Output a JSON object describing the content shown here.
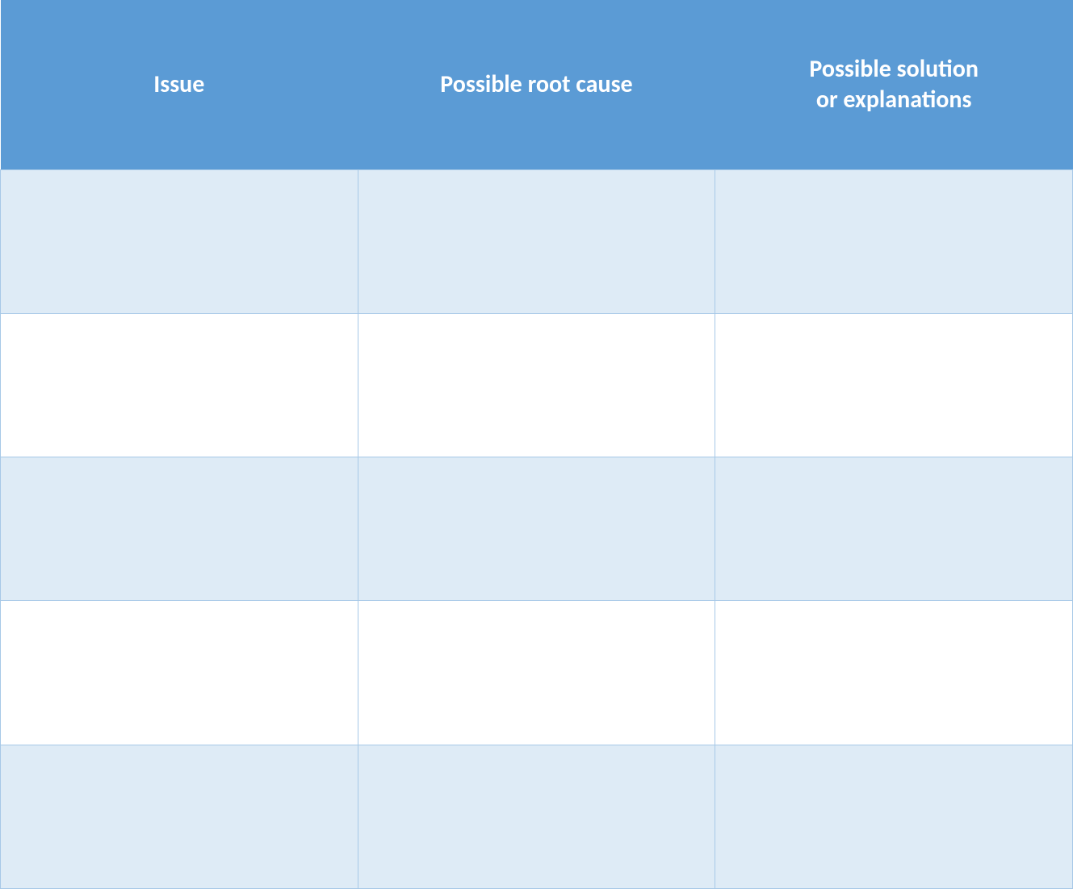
{
  "table": {
    "type": "table",
    "columns": [
      {
        "label": "Issue",
        "multiline": false
      },
      {
        "label": "Possible root cause",
        "multiline": false
      },
      {
        "label": "Possible solution\nor explanations",
        "multiline": true
      }
    ],
    "rows": [
      [
        "",
        "",
        ""
      ],
      [
        "",
        "",
        ""
      ],
      [
        "",
        "",
        ""
      ],
      [
        "",
        "",
        ""
      ],
      [
        "",
        "",
        ""
      ]
    ],
    "styling": {
      "header_bg": "#5b9bd5",
      "header_text_color": "#ffffff",
      "header_fontsize": 30,
      "header_fontweight": "bold",
      "row_odd_bg": "#deebf6",
      "row_even_bg": "#ffffff",
      "border_color": "#a6c8e7",
      "column_widths": [
        "33.33%",
        "33.33%",
        "33.33%"
      ],
      "header_row_height": 210,
      "body_row_height": 178
    }
  }
}
